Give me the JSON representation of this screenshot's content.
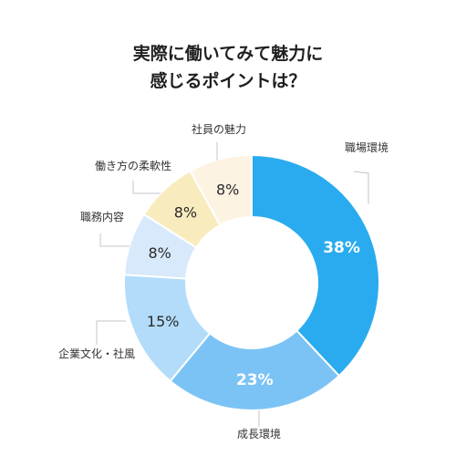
{
  "chart_data": {
    "type": "pie",
    "title_lines": [
      "実際に働いてみて魅力に",
      "感じるポイントは？"
    ],
    "slices": [
      {
        "label": "職場環境",
        "value": 38,
        "display": "38%",
        "color": "#2aabef"
      },
      {
        "label": "成長環境",
        "value": 23,
        "display": "23%",
        "color": "#7cc3f5"
      },
      {
        "label": "企業文化・社風",
        "value": 15,
        "display": "15%",
        "color": "#b3dcfb"
      },
      {
        "label": "職務内容",
        "value": 8,
        "display": "8%",
        "color": "#d8e9fc"
      },
      {
        "label": "働き方の柔軟性",
        "value": 8,
        "display": "8%",
        "color": "#f8ecbf"
      },
      {
        "label": "社員の魅力",
        "value": 8,
        "display": "8%",
        "color": "#fdf3e3"
      }
    ]
  }
}
